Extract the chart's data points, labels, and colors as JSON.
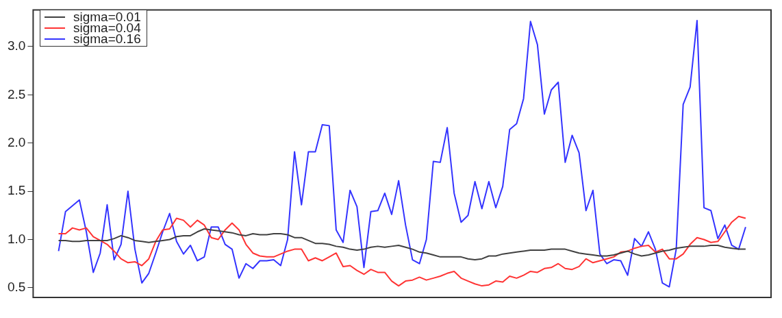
{
  "chart_data": {
    "type": "line",
    "categories": [
      null,
      null,
      null,
      null,
      null,
      null,
      null,
      null,
      null,
      null,
      null,
      null,
      null,
      null,
      null,
      null,
      null,
      null,
      null,
      null,
      null,
      null,
      null,
      null,
      null,
      null,
      null,
      null,
      null,
      null,
      null,
      null,
      null,
      null,
      null,
      null,
      null,
      null,
      null,
      null,
      null,
      null,
      null,
      null,
      null,
      null,
      null,
      null,
      null,
      null,
      null,
      null,
      null,
      null,
      null,
      null,
      null,
      null,
      null,
      null,
      null,
      null,
      null,
      null,
      null,
      null,
      null,
      null,
      null,
      null,
      null,
      null,
      null,
      null,
      null,
      null,
      null,
      null,
      null,
      null,
      null,
      null,
      null,
      null,
      null,
      null,
      null,
      null,
      null,
      null,
      null,
      null,
      null,
      null,
      null,
      null,
      null,
      null,
      null,
      null
    ],
    "series": [
      {
        "name": "sigma=0.01",
        "color": "#404040",
        "values": [
          0.99,
          0.99,
          0.98,
          0.98,
          0.99,
          0.99,
          0.99,
          0.99,
          1.01,
          1.04,
          1.02,
          0.99,
          0.98,
          0.97,
          0.98,
          0.99,
          1.0,
          1.03,
          1.04,
          1.04,
          1.08,
          1.11,
          1.1,
          1.09,
          1.08,
          1.07,
          1.05,
          1.04,
          1.06,
          1.05,
          1.05,
          1.06,
          1.06,
          1.05,
          1.02,
          1.02,
          0.99,
          0.96,
          0.96,
          0.95,
          0.93,
          0.92,
          0.9,
          0.89,
          0.9,
          0.92,
          0.93,
          0.92,
          0.93,
          0.94,
          0.92,
          0.9,
          0.87,
          0.86,
          0.84,
          0.82,
          0.82,
          0.82,
          0.82,
          0.8,
          0.79,
          0.8,
          0.83,
          0.83,
          0.85,
          0.86,
          0.87,
          0.88,
          0.89,
          0.89,
          0.89,
          0.9,
          0.9,
          0.9,
          0.88,
          0.86,
          0.85,
          0.84,
          0.83,
          0.83,
          0.84,
          0.86,
          0.88,
          0.85,
          0.83,
          0.84,
          0.86,
          0.88,
          0.89,
          0.91,
          0.92,
          0.93,
          0.93,
          0.93,
          0.94,
          0.94,
          0.92,
          0.91,
          0.9,
          0.9
        ]
      },
      {
        "name": "sigma=0.04",
        "color": "#ff3333",
        "values": [
          1.06,
          1.06,
          1.12,
          1.1,
          1.12,
          1.03,
          0.99,
          0.95,
          0.88,
          0.8,
          0.76,
          0.77,
          0.73,
          0.8,
          0.98,
          1.1,
          1.11,
          1.22,
          1.2,
          1.13,
          1.2,
          1.15,
          1.02,
          1.0,
          1.1,
          1.17,
          1.1,
          0.95,
          0.86,
          0.83,
          0.82,
          0.82,
          0.85,
          0.88,
          0.9,
          0.9,
          0.78,
          0.81,
          0.78,
          0.82,
          0.86,
          0.72,
          0.73,
          0.68,
          0.64,
          0.69,
          0.66,
          0.66,
          0.57,
          0.52,
          0.57,
          0.58,
          0.61,
          0.58,
          0.6,
          0.62,
          0.65,
          0.67,
          0.6,
          0.57,
          0.54,
          0.52,
          0.53,
          0.57,
          0.56,
          0.62,
          0.6,
          0.63,
          0.67,
          0.66,
          0.7,
          0.71,
          0.75,
          0.7,
          0.69,
          0.72,
          0.8,
          0.76,
          0.78,
          0.8,
          0.82,
          0.87,
          0.88,
          0.91,
          0.93,
          0.94,
          0.87,
          0.9,
          0.8,
          0.8,
          0.85,
          0.95,
          1.02,
          1.0,
          0.97,
          0.98,
          1.08,
          1.18,
          1.24,
          1.22
        ]
      },
      {
        "name": "sigma=0.16",
        "color": "#3333ff",
        "values": [
          0.88,
          1.29,
          1.35,
          1.41,
          1.08,
          0.66,
          0.86,
          1.36,
          0.79,
          0.95,
          1.5,
          0.9,
          0.55,
          0.65,
          0.86,
          1.08,
          1.27,
          0.98,
          0.85,
          0.94,
          0.78,
          0.82,
          1.13,
          1.13,
          0.95,
          0.9,
          0.6,
          0.75,
          0.7,
          0.78,
          0.78,
          0.79,
          0.73,
          1.0,
          1.91,
          1.36,
          1.91,
          1.91,
          2.19,
          2.18,
          1.1,
          0.97,
          1.51,
          1.34,
          0.71,
          1.29,
          1.3,
          1.48,
          1.26,
          1.61,
          1.15,
          0.79,
          0.75,
          1.0,
          1.81,
          1.8,
          2.16,
          1.48,
          1.18,
          1.25,
          1.6,
          1.32,
          1.6,
          1.33,
          1.55,
          2.14,
          2.2,
          2.46,
          3.26,
          3.02,
          2.3,
          2.55,
          2.63,
          1.8,
          2.08,
          1.9,
          1.3,
          1.51,
          0.85,
          0.75,
          0.79,
          0.78,
          0.63,
          1.01,
          0.93,
          1.08,
          0.9,
          0.55,
          0.51,
          0.9,
          2.4,
          2.58,
          3.27,
          1.33,
          1.3,
          1.01,
          1.15,
          0.94,
          0.9,
          1.13
        ]
      }
    ],
    "ylim": [
      0.4,
      3.38
    ],
    "yticks": [
      0.5,
      {
        "value": 1,
        "label": "1.0"
      },
      1.5,
      {
        "value": 2,
        "label": "2.0"
      },
      2.5,
      {
        "value": 3,
        "label": "3.0"
      }
    ],
    "tick_labels": "y",
    "grid": false,
    "legend": "top left"
  }
}
